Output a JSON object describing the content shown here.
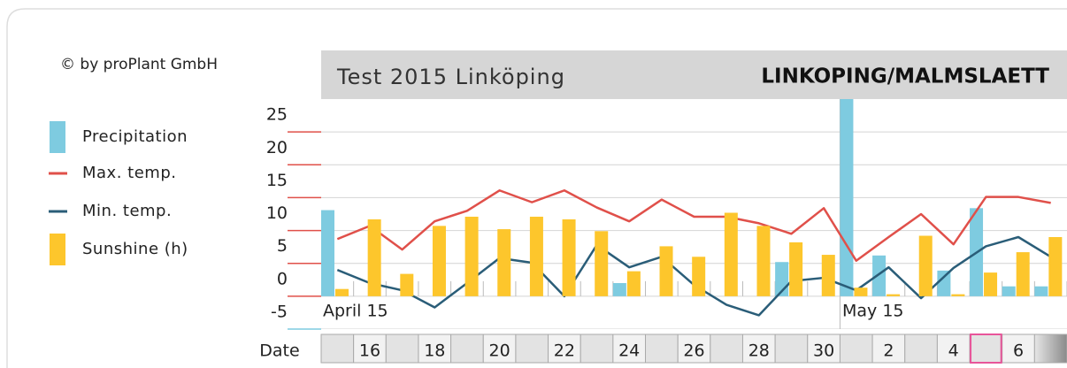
{
  "chart_data": {
    "type": "combo",
    "copyright": "© by proPlant GmbH",
    "title": "Test 2015 Linköping",
    "station": "LINKOPING/MALMSLAETT",
    "x_label": "Date",
    "categories": [
      null,
      "16",
      null,
      "18",
      null,
      "20",
      null,
      "22",
      null,
      "24",
      null,
      "26",
      null,
      "28",
      null,
      "30",
      null,
      "2",
      null,
      "4",
      null,
      "6",
      null
    ],
    "annotations": [
      "April 15",
      "May 15"
    ],
    "ylim": [
      -5,
      30
    ],
    "yticks": [
      -5,
      0,
      5,
      10,
      15,
      20,
      25
    ],
    "grid": true,
    "series": [
      {
        "name": "Precipitation",
        "type": "bar",
        "color": "#7ecbe0",
        "values": [
          13.1,
          0,
          0,
          0,
          0,
          0,
          0,
          0,
          0,
          2.0,
          0,
          0,
          0,
          0,
          5.2,
          0,
          30,
          6.2,
          0,
          3.9,
          13.4,
          1.5,
          1.5
        ]
      },
      {
        "name": "Max. temp.",
        "type": "line",
        "color": "#e0504a",
        "values": [
          8.7,
          10.7,
          7.1,
          11.4,
          13.0,
          16.1,
          14.3,
          16.1,
          13.5,
          11.4,
          14.7,
          12.1,
          12.1,
          11.1,
          9.5,
          13.4,
          5.4,
          9.0,
          12.5,
          7.9,
          15.1,
          15.1,
          14.2
        ]
      },
      {
        "name": "Min. temp.",
        "type": "line",
        "color": "#2a5d78",
        "values": [
          4.0,
          2.0,
          0.9,
          -1.7,
          2.0,
          5.8,
          5.1,
          0,
          7.8,
          4.4,
          6.0,
          1.7,
          -1.3,
          -2.9,
          2.3,
          2.8,
          0.9,
          4.4,
          -0.3,
          4.3,
          7.6,
          9.0,
          6.0
        ]
      },
      {
        "name": "Sunshine (h)",
        "type": "bar",
        "color": "#fdc62c",
        "values": [
          1.1,
          11.7,
          3.4,
          10.7,
          12.1,
          10.2,
          12.1,
          11.7,
          9.9,
          3.8,
          7.6,
          6.0,
          12.7,
          10.7,
          8.2,
          6.3,
          1.3,
          0.3,
          9.2,
          0.3,
          3.6,
          6.7,
          9.0
        ]
      }
    ]
  }
}
